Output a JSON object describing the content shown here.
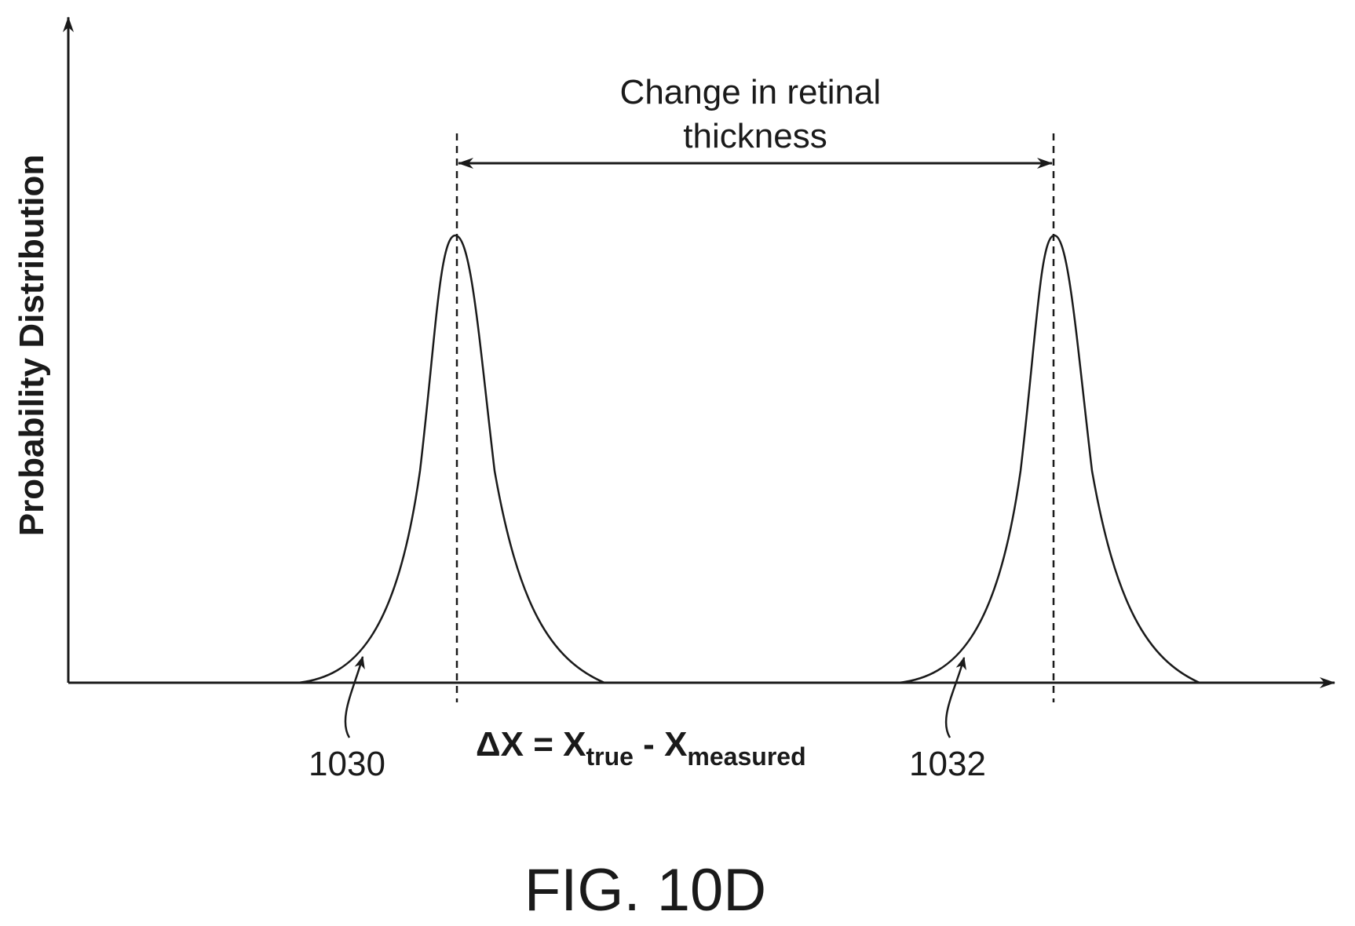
{
  "diagram": {
    "y_axis_label": "Probability Distribution",
    "top_label_line1": "Change in retinal",
    "top_label_line2": "thickness",
    "ref_left": "1030",
    "ref_right": "1032",
    "formula": {
      "delta": "Δ",
      "lhs_var": "X",
      "equals": " = ",
      "var1": "X",
      "sub1": "true",
      "minus": " - ",
      "var2": "X",
      "sub2": "measured"
    },
    "figure_label": "FIG. 10D"
  }
}
